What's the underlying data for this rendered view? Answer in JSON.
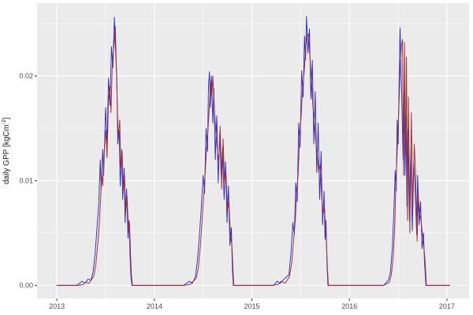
{
  "chart_data": {
    "type": "line",
    "title": "",
    "xlabel": "",
    "ylabel_parts": {
      "prefix": "daily GPP [kgCm",
      "sup": "-2",
      "suffix": "]"
    },
    "x_ticks": [
      {
        "value": 2013,
        "label": "2013"
      },
      {
        "value": 2014,
        "label": "2014"
      },
      {
        "value": 2015,
        "label": "2015"
      },
      {
        "value": 2016,
        "label": "2016"
      },
      {
        "value": 2017,
        "label": "2017"
      }
    ],
    "y_ticks": [
      {
        "value": 0.0,
        "label": "0.00"
      },
      {
        "value": 0.01,
        "label": "0.01"
      },
      {
        "value": 0.02,
        "label": "0.02"
      }
    ],
    "x_minor": [
      2013.5,
      2014.5,
      2015.5,
      2016.5
    ],
    "y_minor": [
      0.005,
      0.015,
      0.025
    ],
    "xlim": [
      2012.797,
      2017.227
    ],
    "ylim": [
      -0.00125,
      0.02695
    ],
    "grid": true,
    "legend": "none",
    "colors": {
      "panel_background": "#ebebeb",
      "grid": "#ffffff",
      "axis_text": "#4d4d4d",
      "axis_title": "#1a1a1a",
      "tick_mark": "#333333",
      "series_blue": "#2b2bd5",
      "series_red": "#9e2f2f"
    },
    "series": [
      {
        "name": "blue",
        "color_key": "series_blue",
        "points": [
          [
            2013.0,
            0
          ],
          [
            2013.2,
            0
          ],
          [
            2013.26,
            0.0004
          ],
          [
            2013.29,
            0.0002
          ],
          [
            2013.32,
            0.0006
          ],
          [
            2013.35,
            0.0005
          ],
          [
            2013.37,
            0.0012
          ],
          [
            2013.39,
            0.0028
          ],
          [
            2013.41,
            0.0052
          ],
          [
            2013.43,
            0.0078
          ],
          [
            2013.445,
            0.012
          ],
          [
            2013.455,
            0.0092
          ],
          [
            2013.47,
            0.013
          ],
          [
            2013.48,
            0.0105
          ],
          [
            2013.5,
            0.017
          ],
          [
            2013.515,
            0.0135
          ],
          [
            2013.53,
            0.0198
          ],
          [
            2013.545,
            0.0172
          ],
          [
            2013.56,
            0.0228
          ],
          [
            2013.575,
            0.0208
          ],
          [
            2013.59,
            0.0256
          ],
          [
            2013.6,
            0.023
          ],
          [
            2013.615,
            0.0198
          ],
          [
            2013.625,
            0.0135
          ],
          [
            2013.64,
            0.0148
          ],
          [
            2013.65,
            0.0095
          ],
          [
            2013.665,
            0.013
          ],
          [
            2013.675,
            0.0082
          ],
          [
            2013.69,
            0.0112
          ],
          [
            2013.7,
            0.006
          ],
          [
            2013.715,
            0.0092
          ],
          [
            2013.73,
            0.0045
          ],
          [
            2013.74,
            0.0062
          ],
          [
            2013.75,
            0.003
          ],
          [
            2013.76,
            0.0008
          ],
          [
            2013.77,
            0
          ],
          [
            2014.3,
            0
          ],
          [
            2014.36,
            0.0004
          ],
          [
            2014.39,
            0.0002
          ],
          [
            2014.42,
            0.0008
          ],
          [
            2014.44,
            0.0022
          ],
          [
            2014.46,
            0.0045
          ],
          [
            2014.48,
            0.0072
          ],
          [
            2014.5,
            0.0105
          ],
          [
            2014.515,
            0.0088
          ],
          [
            2014.53,
            0.015
          ],
          [
            2014.545,
            0.0128
          ],
          [
            2014.555,
            0.019
          ],
          [
            2014.565,
            0.0204
          ],
          [
            2014.575,
            0.017
          ],
          [
            2014.585,
            0.02
          ],
          [
            2014.6,
            0.0155
          ],
          [
            2014.61,
            0.0188
          ],
          [
            2014.625,
            0.012
          ],
          [
            2014.64,
            0.0162
          ],
          [
            2014.655,
            0.0098
          ],
          [
            2014.67,
            0.0145
          ],
          [
            2014.685,
            0.0105
          ],
          [
            2014.7,
            0.0132
          ],
          [
            2014.715,
            0.0082
          ],
          [
            2014.73,
            0.0118
          ],
          [
            2014.745,
            0.006
          ],
          [
            2014.76,
            0.0095
          ],
          [
            2014.775,
            0.0038
          ],
          [
            2014.79,
            0.0055
          ],
          [
            2014.8,
            0.0015
          ],
          [
            2014.81,
            0
          ],
          [
            2015.22,
            0
          ],
          [
            2015.26,
            0.0004
          ],
          [
            2015.29,
            0.0002
          ],
          [
            2015.33,
            0.0006
          ],
          [
            2015.38,
            0.001
          ],
          [
            2015.4,
            0.003
          ],
          [
            2015.42,
            0.006
          ],
          [
            2015.435,
            0.0048
          ],
          [
            2015.45,
            0.0098
          ],
          [
            2015.465,
            0.008
          ],
          [
            2015.48,
            0.0155
          ],
          [
            2015.495,
            0.0132
          ],
          [
            2015.51,
            0.0205
          ],
          [
            2015.525,
            0.018
          ],
          [
            2015.54,
            0.0238
          ],
          [
            2015.55,
            0.0215
          ],
          [
            2015.56,
            0.0257
          ],
          [
            2015.575,
            0.0222
          ],
          [
            2015.59,
            0.0245
          ],
          [
            2015.605,
            0.0178
          ],
          [
            2015.62,
            0.0215
          ],
          [
            2015.635,
            0.0135
          ],
          [
            2015.65,
            0.0185
          ],
          [
            2015.665,
            0.0108
          ],
          [
            2015.68,
            0.0155
          ],
          [
            2015.695,
            0.0082
          ],
          [
            2015.71,
            0.0128
          ],
          [
            2015.725,
            0.0058
          ],
          [
            2015.74,
            0.009
          ],
          [
            2015.75,
            0.0044
          ],
          [
            2015.76,
            0.0062
          ],
          [
            2015.77,
            0.002
          ],
          [
            2015.78,
            0
          ],
          [
            2016.35,
            0
          ],
          [
            2016.4,
            0.0005
          ],
          [
            2016.42,
            0.0012
          ],
          [
            2016.44,
            0.0035
          ],
          [
            2016.455,
            0.0068
          ],
          [
            2016.47,
            0.011
          ],
          [
            2016.48,
            0.009
          ],
          [
            2016.49,
            0.0158
          ],
          [
            2016.5,
            0.0135
          ],
          [
            2016.51,
            0.02
          ],
          [
            2016.52,
            0.0246
          ],
          [
            2016.53,
            0.0205
          ],
          [
            2016.54,
            0.0168
          ],
          [
            2016.55,
            0.012
          ],
          [
            2016.56,
            0.0185
          ],
          [
            2016.57,
            0.0105
          ],
          [
            2016.58,
            0.0162
          ],
          [
            2016.59,
            0.0075
          ],
          [
            2016.6,
            0.0148
          ],
          [
            2016.615,
            0.0062
          ],
          [
            2016.63,
            0.013
          ],
          [
            2016.645,
            0.0052
          ],
          [
            2016.66,
            0.0118
          ],
          [
            2016.675,
            0.009
          ],
          [
            2016.69,
            0.0048
          ],
          [
            2016.7,
            0.0105
          ],
          [
            2016.715,
            0.0058
          ],
          [
            2016.73,
            0.008
          ],
          [
            2016.745,
            0.0035
          ],
          [
            2016.76,
            0.005
          ],
          [
            2016.77,
            0.0022
          ],
          [
            2016.785,
            0
          ],
          [
            2017.03,
            0
          ]
        ]
      },
      {
        "name": "red",
        "color_key": "series_red",
        "points": [
          [
            2013.0,
            0
          ],
          [
            2013.22,
            0
          ],
          [
            2013.27,
            0.0001
          ],
          [
            2013.3,
            0.0003
          ],
          [
            2013.33,
            0.0002
          ],
          [
            2013.36,
            0.0006
          ],
          [
            2013.38,
            0.0009
          ],
          [
            2013.4,
            0.002
          ],
          [
            2013.42,
            0.004
          ],
          [
            2013.435,
            0.0058
          ],
          [
            2013.45,
            0.0085
          ],
          [
            2013.46,
            0.0108
          ],
          [
            2013.47,
            0.0095
          ],
          [
            2013.485,
            0.0125
          ],
          [
            2013.5,
            0.0148
          ],
          [
            2013.515,
            0.0122
          ],
          [
            2013.53,
            0.0178
          ],
          [
            2013.545,
            0.019
          ],
          [
            2013.555,
            0.0165
          ],
          [
            2013.57,
            0.0215
          ],
          [
            2013.585,
            0.0228
          ],
          [
            2013.6,
            0.0247
          ],
          [
            2013.61,
            0.021
          ],
          [
            2013.62,
            0.0172
          ],
          [
            2013.63,
            0.0142
          ],
          [
            2013.645,
            0.0158
          ],
          [
            2013.655,
            0.0112
          ],
          [
            2013.67,
            0.0128
          ],
          [
            2013.68,
            0.009
          ],
          [
            2013.695,
            0.0105
          ],
          [
            2013.705,
            0.0068
          ],
          [
            2013.72,
            0.0085
          ],
          [
            2013.735,
            0.0052
          ],
          [
            2013.745,
            0.006
          ],
          [
            2013.755,
            0.0032
          ],
          [
            2013.765,
            0.001
          ],
          [
            2013.775,
            0
          ],
          [
            2014.3,
            0
          ],
          [
            2014.37,
            0.0001
          ],
          [
            2014.4,
            0.0004
          ],
          [
            2014.43,
            0.0007
          ],
          [
            2014.45,
            0.0016
          ],
          [
            2014.47,
            0.0036
          ],
          [
            2014.49,
            0.0062
          ],
          [
            2014.505,
            0.0085
          ],
          [
            2014.52,
            0.0105
          ],
          [
            2014.535,
            0.013
          ],
          [
            2014.55,
            0.0148
          ],
          [
            2014.565,
            0.0172
          ],
          [
            2014.58,
            0.0196
          ],
          [
            2014.59,
            0.018
          ],
          [
            2014.6,
            0.02
          ],
          [
            2014.615,
            0.0168
          ],
          [
            2014.63,
            0.0148
          ],
          [
            2014.645,
            0.013
          ],
          [
            2014.66,
            0.0118
          ],
          [
            2014.675,
            0.0152
          ],
          [
            2014.69,
            0.0092
          ],
          [
            2014.705,
            0.014
          ],
          [
            2014.72,
            0.0098
          ],
          [
            2014.735,
            0.0108
          ],
          [
            2014.75,
            0.0072
          ],
          [
            2014.765,
            0.008
          ],
          [
            2014.78,
            0.0048
          ],
          [
            2014.795,
            0.0038
          ],
          [
            2014.805,
            0.0018
          ],
          [
            2014.815,
            0
          ],
          [
            2015.22,
            0
          ],
          [
            2015.27,
            0.0001
          ],
          [
            2015.3,
            0.0004
          ],
          [
            2015.34,
            0.0002
          ],
          [
            2015.385,
            0.0008
          ],
          [
            2015.41,
            0.0022
          ],
          [
            2015.43,
            0.0045
          ],
          [
            2015.445,
            0.0062
          ],
          [
            2015.46,
            0.0088
          ],
          [
            2015.475,
            0.0108
          ],
          [
            2015.49,
            0.0142
          ],
          [
            2015.505,
            0.0162
          ],
          [
            2015.52,
            0.0188
          ],
          [
            2015.535,
            0.0202
          ],
          [
            2015.55,
            0.0225
          ],
          [
            2015.565,
            0.0238
          ],
          [
            2015.58,
            0.024
          ],
          [
            2015.595,
            0.0218
          ],
          [
            2015.61,
            0.0198
          ],
          [
            2015.625,
            0.0172
          ],
          [
            2015.64,
            0.016
          ],
          [
            2015.655,
            0.0138
          ],
          [
            2015.67,
            0.0125
          ],
          [
            2015.685,
            0.0108
          ],
          [
            2015.7,
            0.0115
          ],
          [
            2015.715,
            0.0085
          ],
          [
            2015.73,
            0.0068
          ],
          [
            2015.745,
            0.0075
          ],
          [
            2015.755,
            0.0052
          ],
          [
            2015.765,
            0.004
          ],
          [
            2015.775,
            0.0015
          ],
          [
            2015.785,
            0
          ],
          [
            2016.35,
            0
          ],
          [
            2016.41,
            0.0003
          ],
          [
            2016.43,
            0.001
          ],
          [
            2016.45,
            0.0028
          ],
          [
            2016.465,
            0.0055
          ],
          [
            2016.475,
            0.0092
          ],
          [
            2016.485,
            0.0115
          ],
          [
            2016.495,
            0.014
          ],
          [
            2016.505,
            0.0165
          ],
          [
            2016.515,
            0.019
          ],
          [
            2016.525,
            0.0215
          ],
          [
            2016.535,
            0.023
          ],
          [
            2016.545,
            0.0235
          ],
          [
            2016.555,
            0.0105
          ],
          [
            2016.565,
            0.0232
          ],
          [
            2016.575,
            0.0125
          ],
          [
            2016.585,
            0.0218
          ],
          [
            2016.595,
            0.0062
          ],
          [
            2016.605,
            0.018
          ],
          [
            2016.62,
            0.005
          ],
          [
            2016.635,
            0.0165
          ],
          [
            2016.65,
            0.0072
          ],
          [
            2016.665,
            0.0135
          ],
          [
            2016.68,
            0.0105
          ],
          [
            2016.695,
            0.0042
          ],
          [
            2016.705,
            0.0088
          ],
          [
            2016.72,
            0.0068
          ],
          [
            2016.735,
            0.0062
          ],
          [
            2016.75,
            0.0048
          ],
          [
            2016.765,
            0.0035
          ],
          [
            2016.775,
            0.0025
          ],
          [
            2016.79,
            0
          ],
          [
            2017.03,
            0
          ]
        ]
      }
    ]
  }
}
